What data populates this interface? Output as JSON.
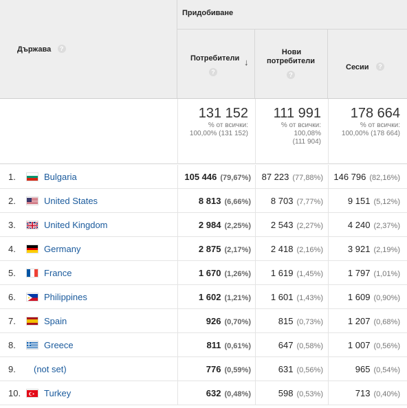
{
  "header": {
    "country_label": "Държава",
    "group_label": "Придобиване",
    "users_label": "Потребители",
    "new_users_label_1": "Нови",
    "new_users_label_2": "потребители",
    "sessions_label": "Сесии",
    "help_glyph": "?",
    "sort_glyph": "↓"
  },
  "totals": {
    "users": {
      "value": "131 152",
      "line1": "% от всички:",
      "line2": "100,00% (131 152)"
    },
    "new_users": {
      "value": "111 991",
      "line1": "% от всички:",
      "line2": "100,08%",
      "line3": "(111 904)"
    },
    "sessions": {
      "value": "178 664",
      "line1": "% от всички:",
      "line2": "100,00% (178 664)"
    }
  },
  "rows": [
    {
      "num": "1.",
      "country": "Bulgaria",
      "flag": "bg",
      "users": "105 446",
      "users_pct": "(79,67%)",
      "new": "87 223",
      "new_pct": "(77,88%)",
      "sessions": "146 796",
      "sessions_pct": "(82,16%)"
    },
    {
      "num": "2.",
      "country": "United States",
      "flag": "us",
      "users": "8 813",
      "users_pct": "(6,66%)",
      "new": "8 703",
      "new_pct": "(7,77%)",
      "sessions": "9 151",
      "sessions_pct": "(5,12%)"
    },
    {
      "num": "3.",
      "country": "United Kingdom",
      "flag": "gb",
      "users": "2 984",
      "users_pct": "(2,25%)",
      "new": "2 543",
      "new_pct": "(2,27%)",
      "sessions": "4 240",
      "sessions_pct": "(2,37%)"
    },
    {
      "num": "4.",
      "country": "Germany",
      "flag": "de",
      "users": "2 875",
      "users_pct": "(2,17%)",
      "new": "2 418",
      "new_pct": "(2,16%)",
      "sessions": "3 921",
      "sessions_pct": "(2,19%)"
    },
    {
      "num": "5.",
      "country": "France",
      "flag": "fr",
      "users": "1 670",
      "users_pct": "(1,26%)",
      "new": "1 619",
      "new_pct": "(1,45%)",
      "sessions": "1 797",
      "sessions_pct": "(1,01%)"
    },
    {
      "num": "6.",
      "country": "Philippines",
      "flag": "ph",
      "users": "1 602",
      "users_pct": "(1,21%)",
      "new": "1 601",
      "new_pct": "(1,43%)",
      "sessions": "1 609",
      "sessions_pct": "(0,90%)"
    },
    {
      "num": "7.",
      "country": "Spain",
      "flag": "es",
      "users": "926",
      "users_pct": "(0,70%)",
      "new": "815",
      "new_pct": "(0,73%)",
      "sessions": "1 207",
      "sessions_pct": "(0,68%)"
    },
    {
      "num": "8.",
      "country": "Greece",
      "flag": "gr",
      "users": "811",
      "users_pct": "(0,61%)",
      "new": "647",
      "new_pct": "(0,58%)",
      "sessions": "1 007",
      "sessions_pct": "(0,56%)"
    },
    {
      "num": "9.",
      "country": "(not set)",
      "flag": "",
      "users": "776",
      "users_pct": "(0,59%)",
      "new": "631",
      "new_pct": "(0,56%)",
      "sessions": "965",
      "sessions_pct": "(0,54%)"
    },
    {
      "num": "10.",
      "country": "Turkey",
      "flag": "tr",
      "users": "632",
      "users_pct": "(0,48%)",
      "new": "598",
      "new_pct": "(0,53%)",
      "sessions": "713",
      "sessions_pct": "(0,40%)"
    }
  ],
  "colors": {
    "link": "#1a5a9c",
    "header_bg": "#eeeeee",
    "border": "#d6d6d6"
  }
}
